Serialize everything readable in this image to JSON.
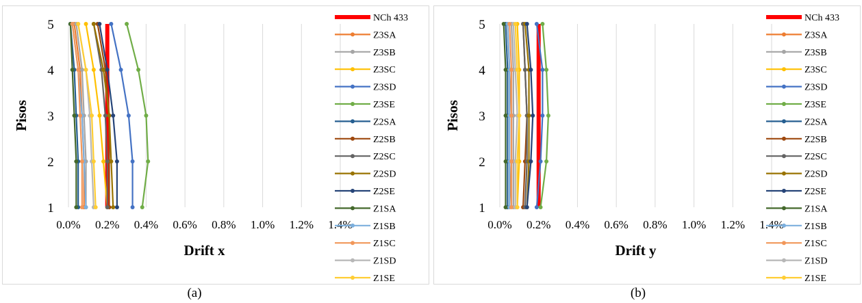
{
  "captions": [
    "(a)",
    "(b)"
  ],
  "colors": {
    "NCh 433": "#ff0000",
    "Z3SA": "#ed7d31",
    "Z3SB": "#a5a5a5",
    "Z3SC": "#ffc000",
    "Z3SD": "#4472c4",
    "Z3SE": "#70ad47",
    "Z2SA": "#255e91",
    "Z2SB": "#9e480e",
    "Z2SC": "#636363",
    "Z2SD": "#997300",
    "Z2SE": "#264478",
    "Z1SA": "#43682b",
    "Z1SB": "#7cafdd",
    "Z1SC": "#f1975a",
    "Z1SD": "#b7b7b7",
    "Z1SE": "#ffcd33"
  },
  "chart_data": [
    {
      "type": "line",
      "xlabel": "Drift x",
      "ylabel": "Pisos",
      "xlim": [
        0,
        0.014
      ],
      "ylim": [
        1,
        5
      ],
      "x_ticks": [
        "0.0%",
        "0.2%",
        "0.4%",
        "0.6%",
        "0.8%",
        "1.0%",
        "1.2%",
        "1.4%"
      ],
      "y_ticks": [
        "1",
        "2",
        "3",
        "4",
        "5"
      ],
      "grid": true,
      "legend_position": "right",
      "pisos": [
        1,
        2,
        3,
        4,
        5
      ],
      "series": [
        {
          "name": "NCh 433",
          "values": [
            0.002,
            0.002,
            0.002,
            0.002,
            0.002
          ]
        },
        {
          "name": "Z3SA",
          "values": [
            0.0008,
            0.0008,
            0.0007,
            0.0006,
            0.0003
          ]
        },
        {
          "name": "Z3SB",
          "values": [
            0.0009,
            0.0009,
            0.0008,
            0.0007,
            0.0004
          ]
        },
        {
          "name": "Z3SC",
          "values": [
            0.002,
            0.0018,
            0.0016,
            0.0013,
            0.0009
          ]
        },
        {
          "name": "Z3SD",
          "values": [
            0.0033,
            0.0033,
            0.0031,
            0.0027,
            0.0022
          ]
        },
        {
          "name": "Z3SE",
          "values": [
            0.0038,
            0.0041,
            0.004,
            0.0036,
            0.003
          ]
        },
        {
          "name": "Z2SA",
          "values": [
            0.0005,
            0.0005,
            0.0004,
            0.0003,
            0.0001
          ]
        },
        {
          "name": "Z2SB",
          "values": [
            0.0021,
            0.0021,
            0.0021,
            0.0019,
            0.0015
          ]
        },
        {
          "name": "Z2SC",
          "values": [
            0.002,
            0.002,
            0.0019,
            0.0017,
            0.0013
          ]
        },
        {
          "name": "Z2SD",
          "values": [
            0.0023,
            0.0022,
            0.0021,
            0.0018,
            0.0013
          ]
        },
        {
          "name": "Z2SE",
          "values": [
            0.0025,
            0.0025,
            0.0023,
            0.002,
            0.0016
          ]
        },
        {
          "name": "Z1SA",
          "values": [
            0.0004,
            0.0004,
            0.0003,
            0.0002,
            0.0001
          ]
        },
        {
          "name": "Z1SB",
          "values": [
            0.0009,
            0.0008,
            0.0007,
            0.0005,
            0.0002
          ]
        },
        {
          "name": "Z1SC",
          "values": [
            0.0007,
            0.0007,
            0.0006,
            0.0005,
            0.0002
          ]
        },
        {
          "name": "Z1SD",
          "values": [
            0.0013,
            0.0012,
            0.0011,
            0.0009,
            0.0005
          ]
        },
        {
          "name": "Z1SE",
          "values": [
            0.0014,
            0.0013,
            0.0012,
            0.0009,
            0.0005
          ]
        }
      ]
    },
    {
      "type": "line",
      "xlabel": "Drift y",
      "ylabel": "Pisos",
      "xlim": [
        0,
        0.014
      ],
      "ylim": [
        1,
        5
      ],
      "x_ticks": [
        "0.0%",
        "0.2%",
        "0.4%",
        "0.6%",
        "0.8%",
        "1.0%",
        "1.2%",
        "1.4%"
      ],
      "y_ticks": [
        "1",
        "2",
        "3",
        "4",
        "5"
      ],
      "grid": true,
      "legend_position": "right",
      "pisos": [
        1,
        2,
        3,
        4,
        5
      ],
      "series": [
        {
          "name": "NCh 433",
          "values": [
            0.002,
            0.002,
            0.002,
            0.002,
            0.002
          ]
        },
        {
          "name": "Z3SA",
          "values": [
            0.0005,
            0.0006,
            0.0006,
            0.0005,
            0.0004
          ]
        },
        {
          "name": "Z3SB",
          "values": [
            0.0007,
            0.0007,
            0.0007,
            0.0007,
            0.0006
          ]
        },
        {
          "name": "Z3SC",
          "values": [
            0.0009,
            0.001,
            0.001,
            0.001,
            0.0009
          ]
        },
        {
          "name": "Z3SD",
          "values": [
            0.0019,
            0.0021,
            0.0022,
            0.0022,
            0.0019
          ]
        },
        {
          "name": "Z3SE",
          "values": [
            0.0021,
            0.0024,
            0.0025,
            0.0024,
            0.0022
          ]
        },
        {
          "name": "Z2SA",
          "values": [
            0.0004,
            0.0004,
            0.0004,
            0.0004,
            0.0003
          ]
        },
        {
          "name": "Z2SB",
          "values": [
            0.0012,
            0.0013,
            0.0014,
            0.0013,
            0.0012
          ]
        },
        {
          "name": "Z2SC",
          "values": [
            0.0013,
            0.0014,
            0.0014,
            0.0013,
            0.0012
          ]
        },
        {
          "name": "Z2SD",
          "values": [
            0.0014,
            0.0015,
            0.0015,
            0.0015,
            0.0013
          ]
        },
        {
          "name": "Z2SE",
          "values": [
            0.0014,
            0.0016,
            0.0017,
            0.0016,
            0.0014
          ]
        },
        {
          "name": "Z1SA",
          "values": [
            0.0003,
            0.0003,
            0.0003,
            0.0003,
            0.0002
          ]
        },
        {
          "name": "Z1SB",
          "values": [
            0.0005,
            0.0005,
            0.0005,
            0.0005,
            0.0004
          ]
        },
        {
          "name": "Z1SC",
          "values": [
            0.0006,
            0.0006,
            0.0006,
            0.0006,
            0.0005
          ]
        },
        {
          "name": "Z1SD",
          "values": [
            0.0008,
            0.0008,
            0.0009,
            0.0008,
            0.0007
          ]
        },
        {
          "name": "Z1SE",
          "values": [
            0.0009,
            0.0009,
            0.001,
            0.0009,
            0.0008
          ]
        }
      ]
    }
  ]
}
